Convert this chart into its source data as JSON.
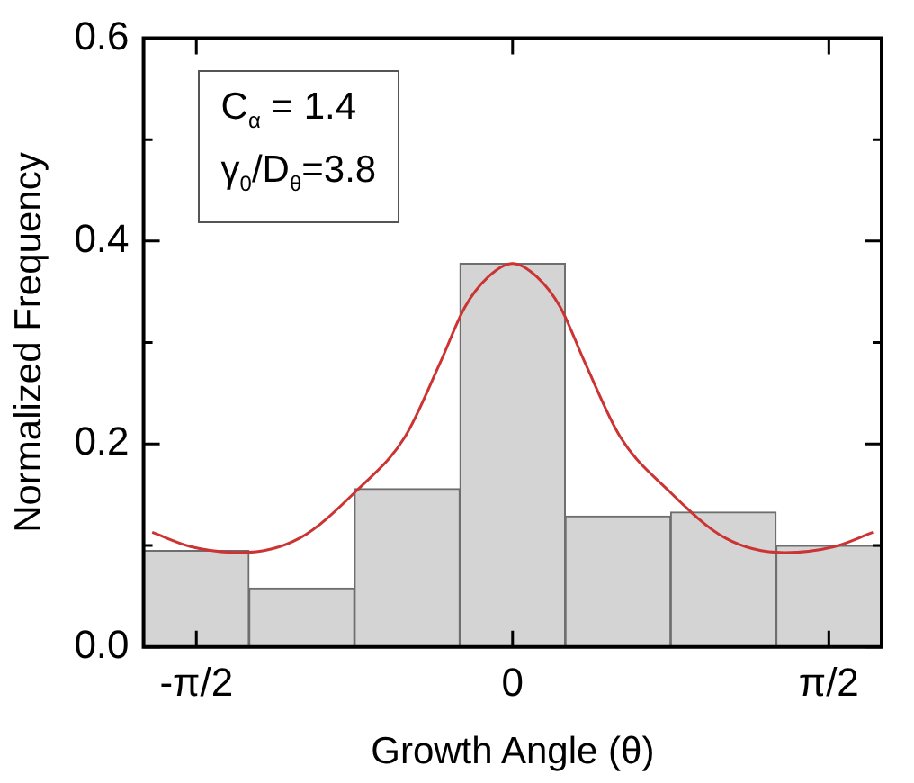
{
  "chart_data": {
    "type": "histogram",
    "xlabel": "Growth Angle (θ)",
    "ylabel": "Normalized Frequency",
    "xlim": [
      -1.833,
      1.833
    ],
    "ylim": [
      0,
      0.6
    ],
    "xticks": [
      {
        "value": -1.5708,
        "label": "-π/2"
      },
      {
        "value": 0,
        "label": "0"
      },
      {
        "value": 1.5708,
        "label": "π/2"
      }
    ],
    "yticks": [
      {
        "value": 0,
        "label": "0.0"
      },
      {
        "value": 0.1,
        "label": null
      },
      {
        "value": 0.2,
        "label": "0.2"
      },
      {
        "value": 0.3,
        "label": null
      },
      {
        "value": 0.4,
        "label": "0.4"
      },
      {
        "value": 0.5,
        "label": null
      },
      {
        "value": 0.6,
        "label": "0.6"
      }
    ],
    "color": "#d4d4d4",
    "bins": [
      -1.833,
      -1.309,
      -0.785,
      -0.262,
      0.262,
      0.785,
      1.309,
      1.833
    ],
    "values": [
      0.095,
      0.058,
      0.156,
      0.378,
      0.129,
      0.133,
      0.1
    ],
    "series": [
      {
        "type": "line",
        "color": "#cc3333",
        "x": [
          -1.79,
          -1.6,
          -1.35,
          -1.06,
          -0.77,
          -0.535,
          -0.36,
          -0.237,
          -0.12,
          0,
          0.12,
          0.237,
          0.36,
          0.535,
          0.77,
          1.06,
          1.35,
          1.6,
          1.79
        ],
        "values": [
          0.113,
          0.099,
          0.093,
          0.107,
          0.155,
          0.207,
          0.28,
          0.335,
          0.365,
          0.378,
          0.365,
          0.335,
          0.28,
          0.207,
          0.155,
          0.107,
          0.093,
          0.099,
          0.113
        ]
      }
    ],
    "marker": "none",
    "line_style": "solid",
    "legend": false,
    "annotations": [
      "C$_{α}$ = 1.4",
      "γ$_{0}$/D$_{θ}$=3.8"
    ]
  }
}
